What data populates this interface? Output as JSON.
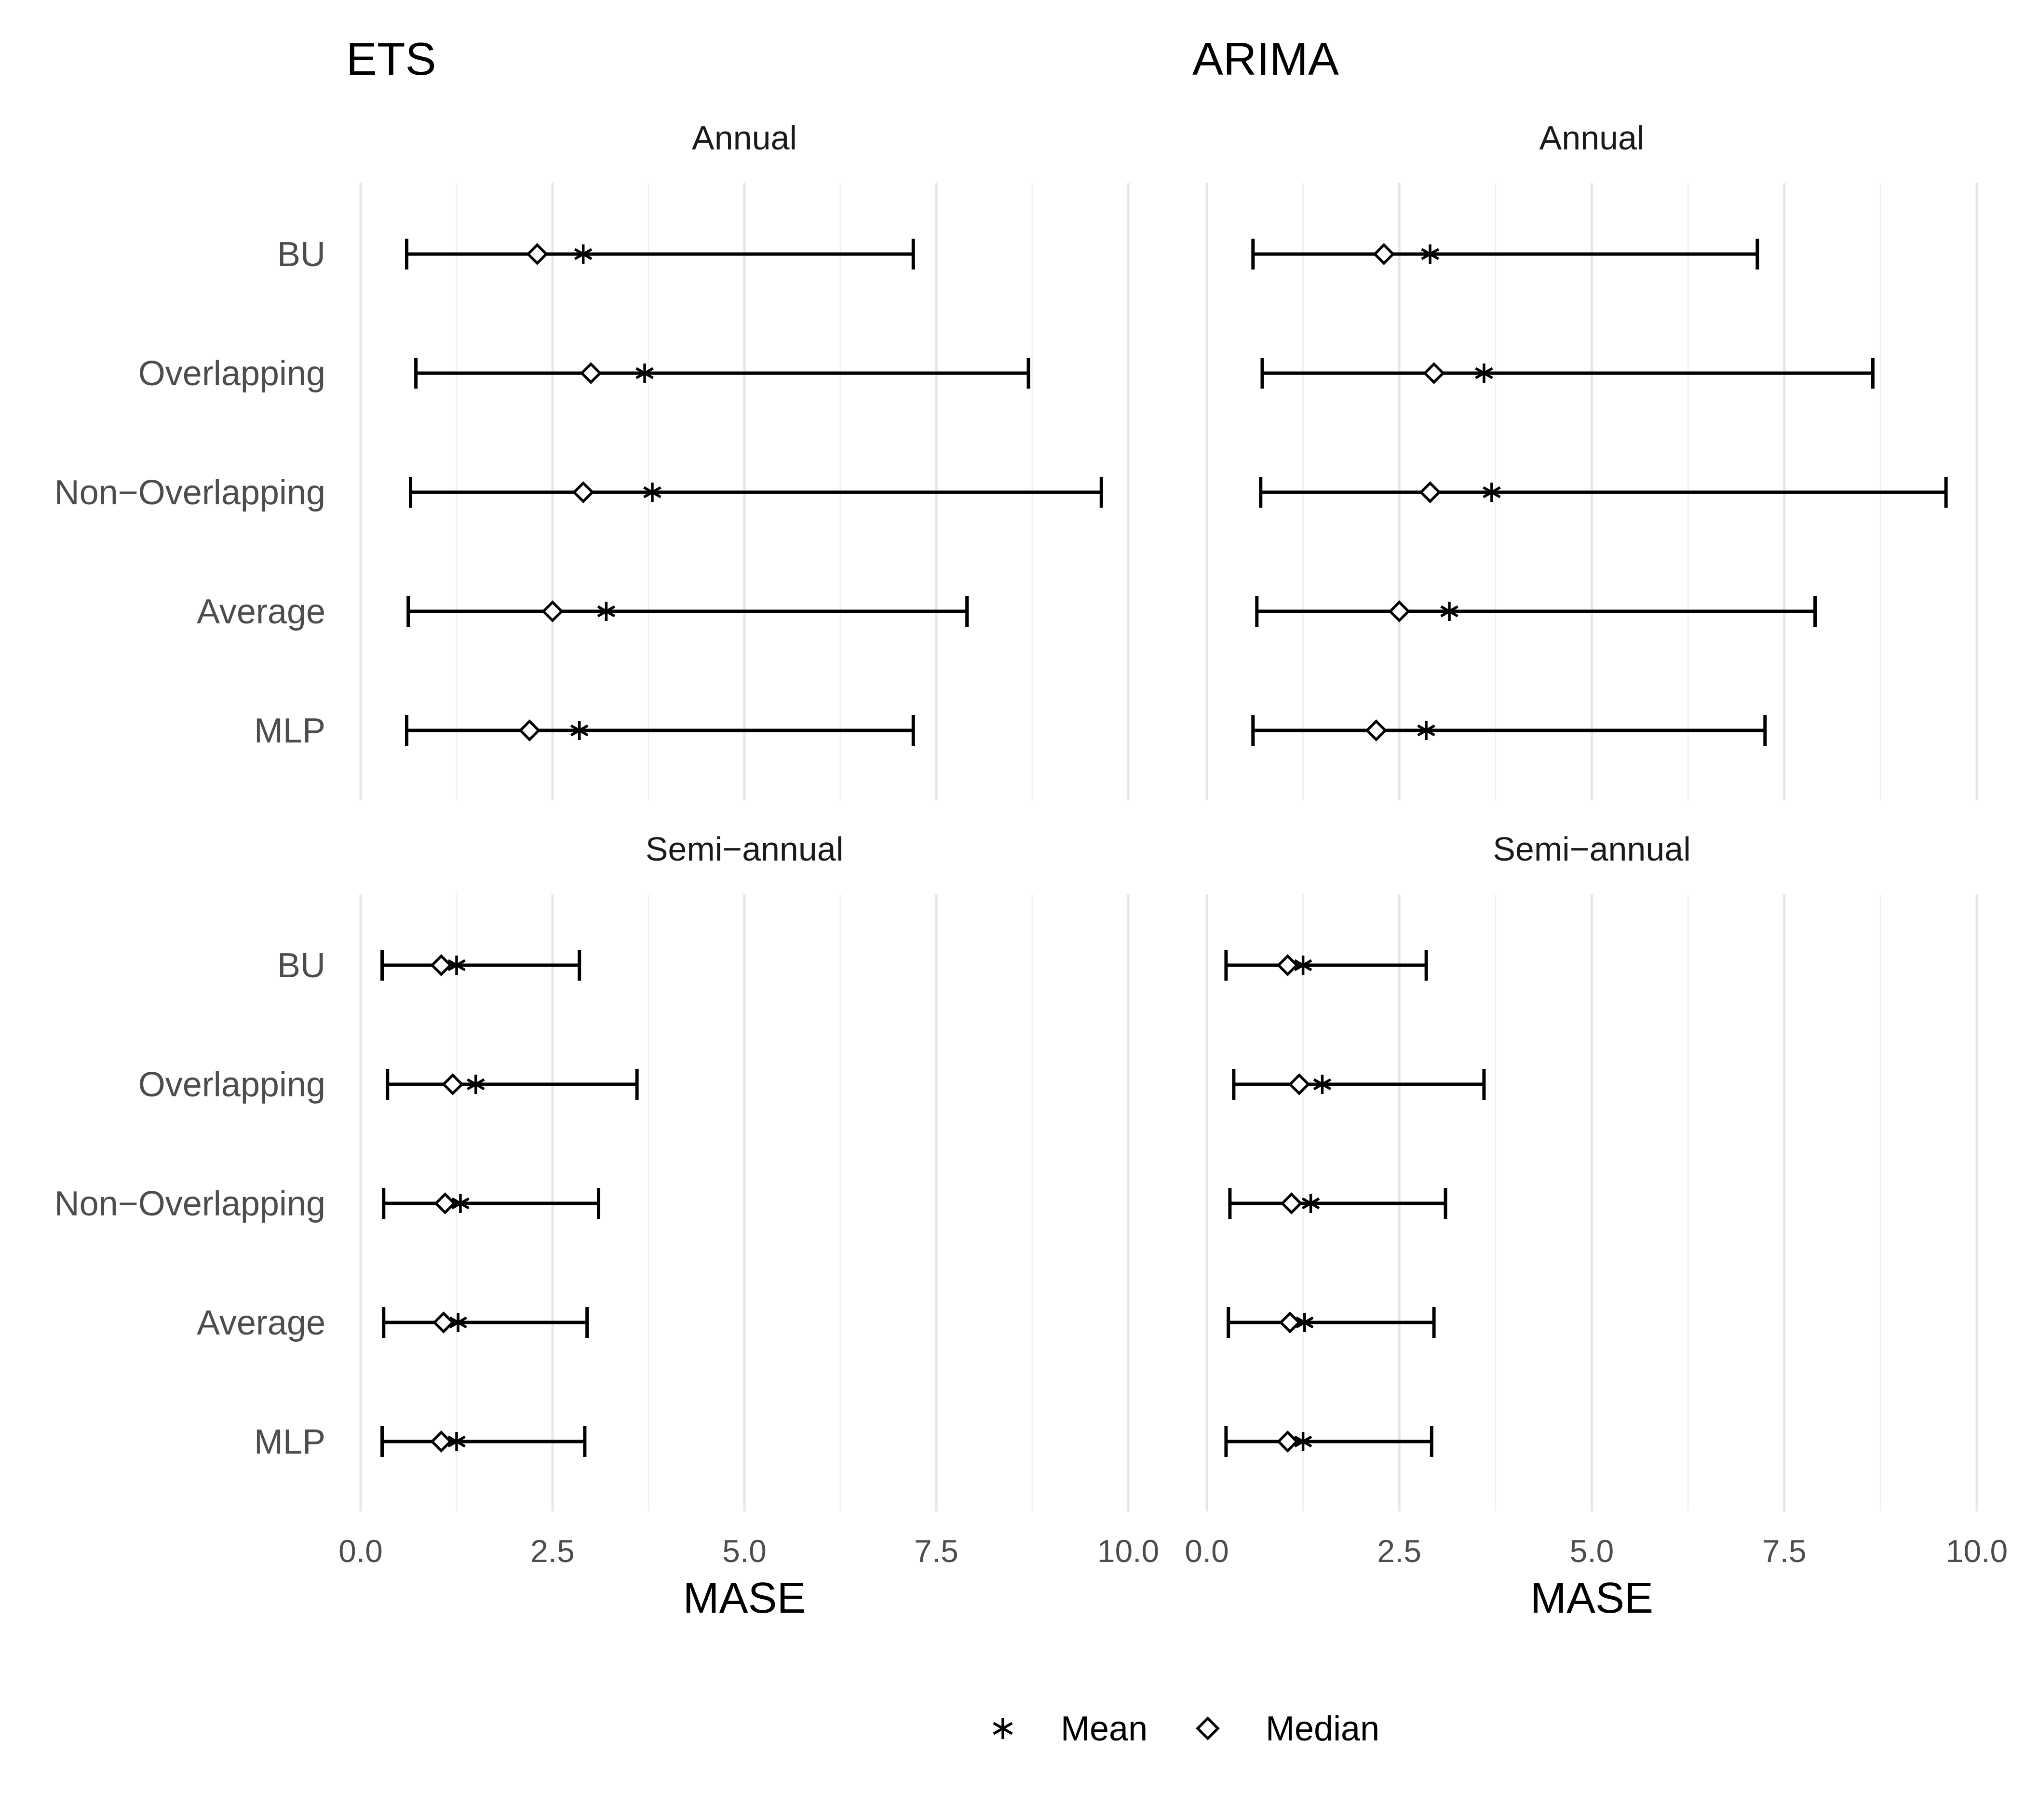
{
  "chart_data": {
    "type": "errorbar",
    "xlabel": "MASE",
    "xlim": [
      0,
      10
    ],
    "x_ticks": [
      "0.0",
      "2.5",
      "5.0",
      "7.5",
      "10.0"
    ],
    "grid": true,
    "legend": {
      "position": "bottom",
      "entries": [
        {
          "label": "Mean",
          "marker": "asterisk"
        },
        {
          "label": "Median",
          "marker": "diamond"
        }
      ]
    },
    "categories": [
      "BU",
      "Overlapping",
      "Non−Overlapping",
      "Average",
      "MLP"
    ],
    "panels": [
      {
        "title": "ETS",
        "facets": [
          {
            "strip": "Annual",
            "rows": [
              {
                "category": "BU",
                "min": 0.6,
                "max": 7.2,
                "median": 2.3,
                "mean": 2.9
              },
              {
                "category": "Overlapping",
                "min": 0.72,
                "max": 8.7,
                "median": 3.0,
                "mean": 3.7
              },
              {
                "category": "Non−Overlapping",
                "min": 0.65,
                "max": 9.65,
                "median": 2.9,
                "mean": 3.8
              },
              {
                "category": "Average",
                "min": 0.62,
                "max": 7.9,
                "median": 2.5,
                "mean": 3.2
              },
              {
                "category": "MLP",
                "min": 0.6,
                "max": 7.2,
                "median": 2.2,
                "mean": 2.85
              }
            ]
          },
          {
            "strip": "Semi−annual",
            "rows": [
              {
                "category": "BU",
                "min": 0.28,
                "max": 2.85,
                "median": 1.05,
                "mean": 1.25
              },
              {
                "category": "Overlapping",
                "min": 0.35,
                "max": 3.6,
                "median": 1.2,
                "mean": 1.5
              },
              {
                "category": "Non−Overlapping",
                "min": 0.3,
                "max": 3.1,
                "median": 1.1,
                "mean": 1.3
              },
              {
                "category": "Average",
                "min": 0.3,
                "max": 2.95,
                "median": 1.08,
                "mean": 1.27
              },
              {
                "category": "MLP",
                "min": 0.28,
                "max": 2.92,
                "median": 1.05,
                "mean": 1.25
              }
            ]
          }
        ]
      },
      {
        "title": "ARIMA",
        "facets": [
          {
            "strip": "Annual",
            "rows": [
              {
                "category": "BU",
                "min": 0.6,
                "max": 7.15,
                "median": 2.3,
                "mean": 2.9
              },
              {
                "category": "Overlapping",
                "min": 0.72,
                "max": 8.65,
                "median": 2.95,
                "mean": 3.6
              },
              {
                "category": "Non−Overlapping",
                "min": 0.7,
                "max": 9.6,
                "median": 2.9,
                "mean": 3.7
              },
              {
                "category": "Average",
                "min": 0.65,
                "max": 7.9,
                "median": 2.5,
                "mean": 3.15
              },
              {
                "category": "MLP",
                "min": 0.6,
                "max": 7.25,
                "median": 2.2,
                "mean": 2.85
              }
            ]
          },
          {
            "strip": "Semi−annual",
            "rows": [
              {
                "category": "BU",
                "min": 0.25,
                "max": 2.85,
                "median": 1.05,
                "mean": 1.25
              },
              {
                "category": "Overlapping",
                "min": 0.35,
                "max": 3.6,
                "median": 1.2,
                "mean": 1.5
              },
              {
                "category": "Non−Overlapping",
                "min": 0.3,
                "max": 3.1,
                "median": 1.1,
                "mean": 1.35
              },
              {
                "category": "Average",
                "min": 0.28,
                "max": 2.95,
                "median": 1.08,
                "mean": 1.27
              },
              {
                "category": "MLP",
                "min": 0.25,
                "max": 2.92,
                "median": 1.05,
                "mean": 1.25
              }
            ]
          }
        ]
      }
    ]
  }
}
